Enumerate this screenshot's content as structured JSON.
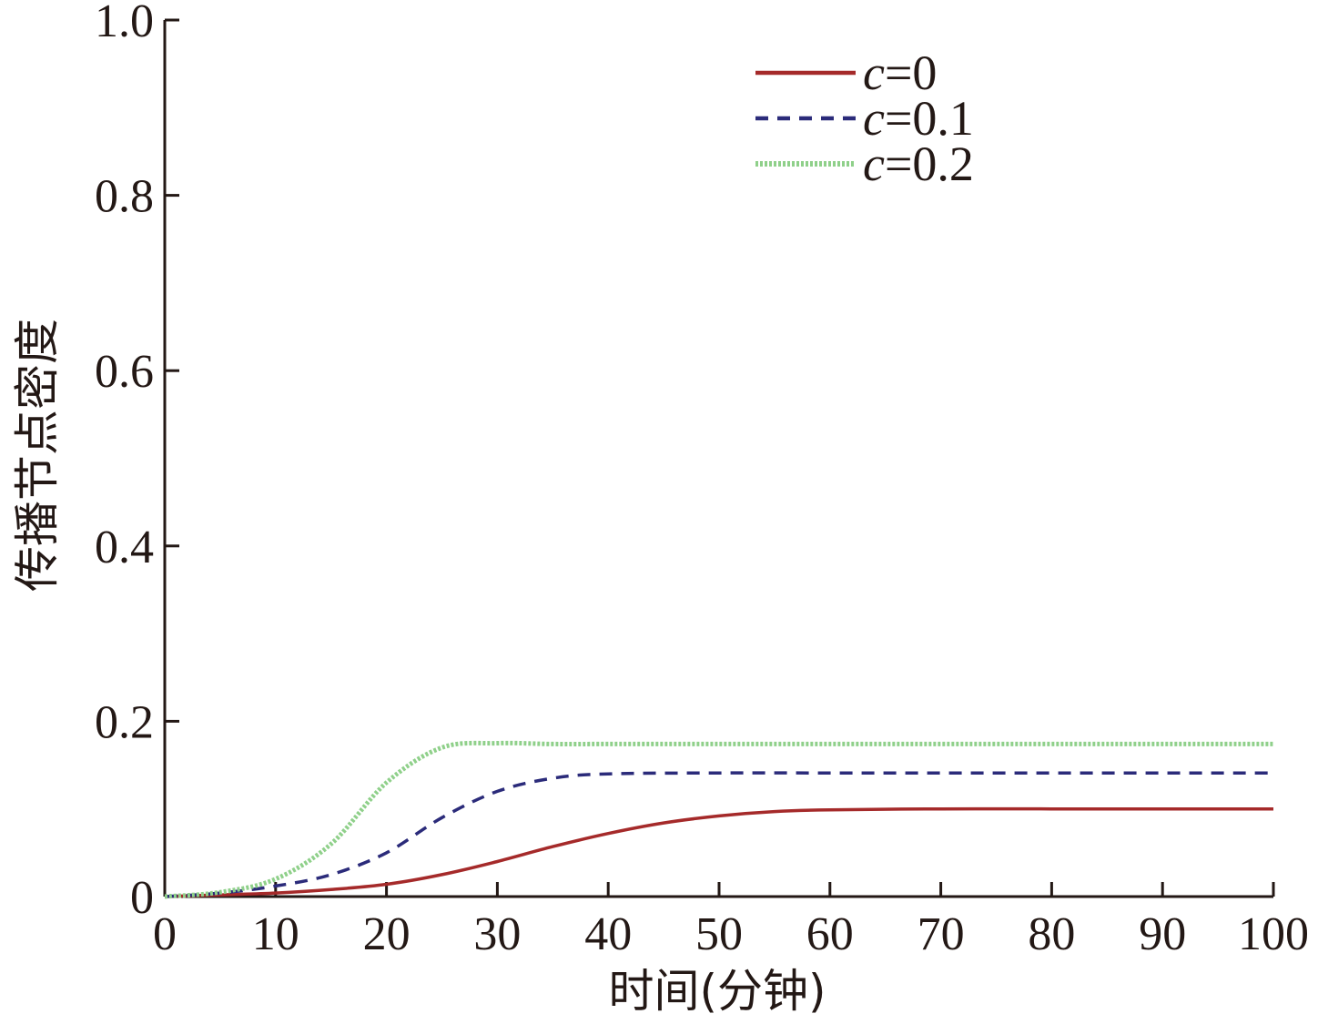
{
  "chart_data": {
    "type": "line",
    "title": "",
    "xlabel": "时间(分钟)",
    "ylabel": "传播节点密度",
    "xlim": [
      0,
      100
    ],
    "ylim": [
      0,
      1.0
    ],
    "x_ticks": [
      "0",
      "10",
      "20",
      "30",
      "40",
      "50",
      "60",
      "70",
      "80",
      "90",
      "100"
    ],
    "y_ticks": [
      "0",
      "0.2",
      "0.4",
      "0.6",
      "0.8",
      "1.0"
    ],
    "grid": false,
    "legend_position": "top-right",
    "legend_var": "c",
    "series": [
      {
        "name": "c=0",
        "legend_value": "=0",
        "color": "#a52a2a",
        "style": "solid",
        "x": [
          0,
          5,
          10,
          15,
          20,
          25,
          30,
          35,
          40,
          45,
          50,
          55,
          60,
          70,
          80,
          90,
          100
        ],
        "y": [
          0,
          0.002,
          0.004,
          0.008,
          0.014,
          0.025,
          0.04,
          0.057,
          0.072,
          0.084,
          0.092,
          0.097,
          0.099,
          0.1,
          0.1,
          0.1,
          0.1
        ]
      },
      {
        "name": "c=0.1",
        "legend_value": "=0.1",
        "color": "#2b2b7a",
        "style": "dashed",
        "x": [
          0,
          5,
          10,
          15,
          20,
          25,
          30,
          35,
          40,
          50,
          60,
          70,
          80,
          90,
          100
        ],
        "y": [
          0,
          0.004,
          0.012,
          0.025,
          0.05,
          0.09,
          0.12,
          0.135,
          0.14,
          0.141,
          0.141,
          0.141,
          0.141,
          0.141,
          0.141
        ]
      },
      {
        "name": "c=0.2",
        "legend_value": "=0.2",
        "color": "#8fd08a",
        "style": "dotted",
        "x": [
          0,
          5,
          10,
          15,
          20,
          25,
          30,
          35,
          40,
          50,
          60,
          70,
          80,
          90,
          100
        ],
        "y": [
          0,
          0.005,
          0.02,
          0.06,
          0.13,
          0.17,
          0.175,
          0.174,
          0.174,
          0.174,
          0.174,
          0.174,
          0.174,
          0.174,
          0.174
        ]
      }
    ]
  }
}
